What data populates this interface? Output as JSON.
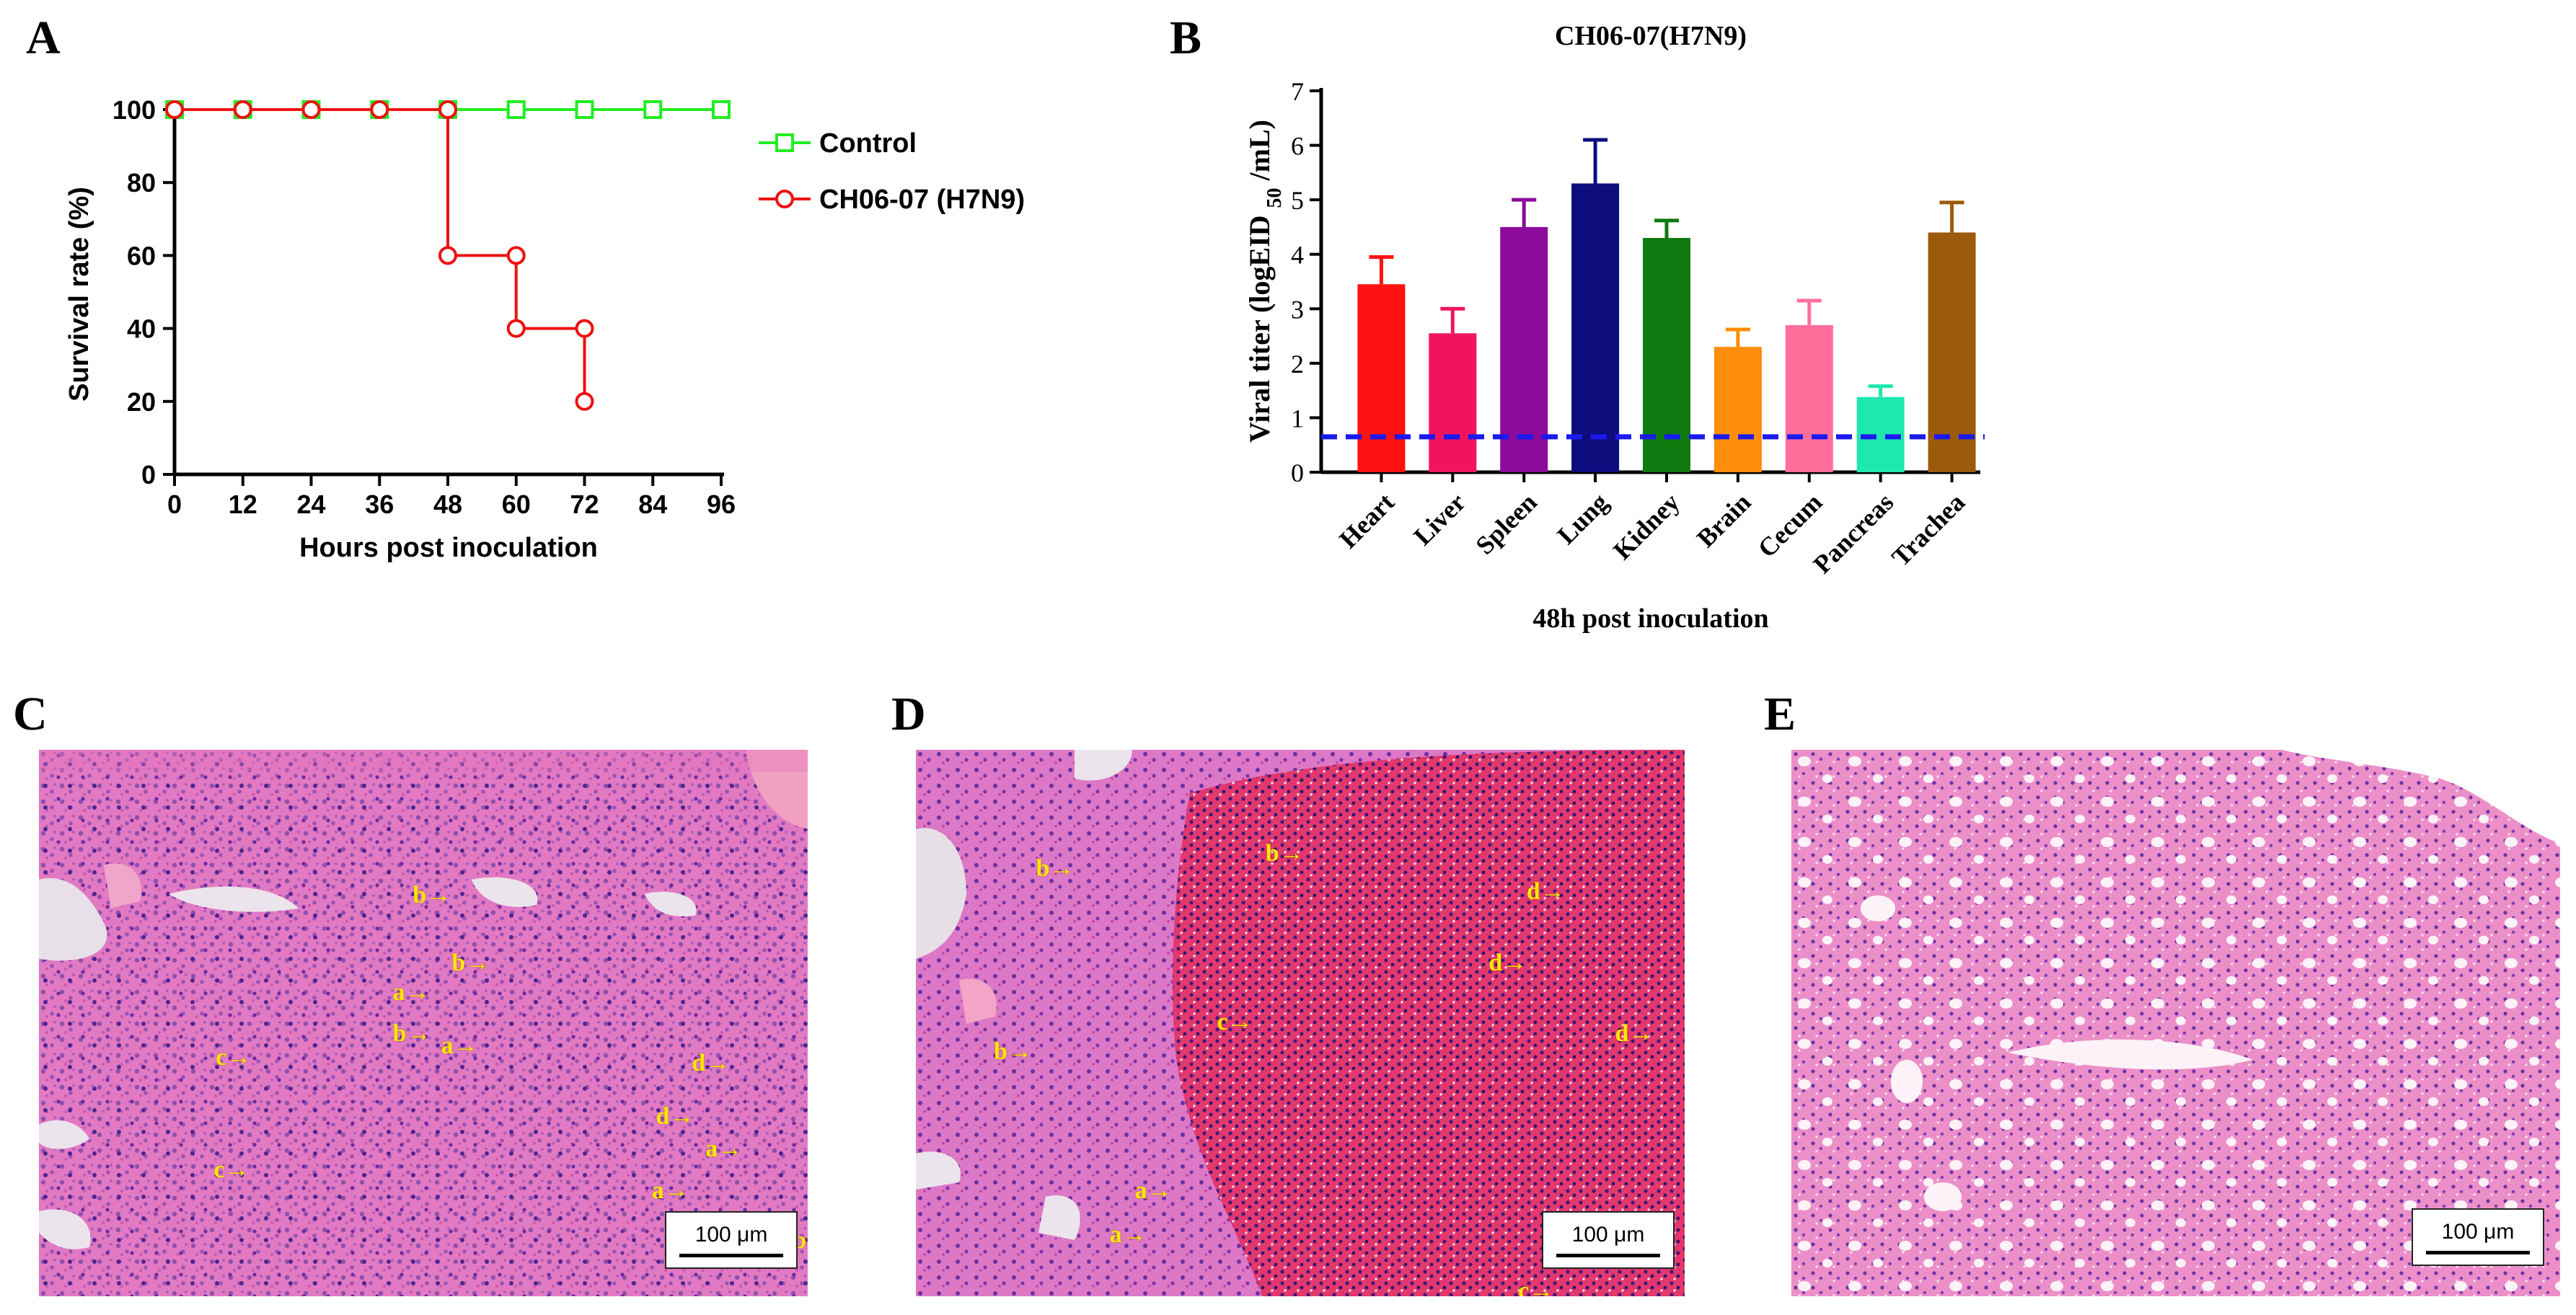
{
  "panels": {
    "a": "A",
    "b": "B",
    "c": "C",
    "d": "D",
    "e": "E"
  },
  "colors": {
    "control": "#22ee22",
    "virus": "#ee1111",
    "baseline": "#1a1aee"
  },
  "chart_data": [
    {
      "type": "line",
      "title": "",
      "xlabel": "Hours post inoculation",
      "ylabel": "Survival rate (%)",
      "xlim": [
        0,
        96
      ],
      "ylim": [
        0,
        100
      ],
      "x_ticks": [
        "0",
        "12",
        "24",
        "36",
        "48",
        "60",
        "72",
        "84",
        "96"
      ],
      "y_ticks": [
        "0",
        "20",
        "40",
        "60",
        "80",
        "100"
      ],
      "legend_position": "top-right",
      "step": true,
      "series": [
        {
          "name": "Control",
          "marker": "square",
          "color": "#22ee22",
          "x": [
            0,
            12,
            24,
            36,
            48,
            60,
            72,
            84,
            96
          ],
          "y": [
            100,
            100,
            100,
            100,
            100,
            100,
            100,
            100,
            100
          ]
        },
        {
          "name": "CH06-07 (H7N9)",
          "marker": "circle",
          "color": "#ee1111",
          "x": [
            0,
            12,
            24,
            36,
            48,
            48,
            60,
            60,
            72,
            72
          ],
          "y": [
            100,
            100,
            100,
            100,
            100,
            60,
            60,
            40,
            40,
            20
          ]
        }
      ]
    },
    {
      "type": "bar",
      "title": "CH06-07(H7N9)",
      "xlabel": "48h post inoculation",
      "ylabel": "Viral titer (logEID50 /mL)",
      "ylim": [
        0,
        7
      ],
      "y_ticks": [
        "0",
        "1",
        "2",
        "3",
        "4",
        "5",
        "6",
        "7"
      ],
      "categories": [
        "Heart",
        "Liver",
        "Spleen",
        "Lung",
        "Kidney",
        "Brain",
        "Cecum",
        "Pancreas",
        "Trachea"
      ],
      "values": [
        3.45,
        2.55,
        4.5,
        5.3,
        4.3,
        2.3,
        2.7,
        1.38,
        4.4
      ],
      "errors": [
        0.5,
        0.45,
        0.5,
        0.8,
        0.32,
        0.32,
        0.45,
        0.2,
        0.55
      ],
      "bar_colors": [
        "#ff1111",
        "#f0145e",
        "#8b0a9b",
        "#0d0d7e",
        "#0f7a0f",
        "#ff8c0a",
        "#ff6e9b",
        "#1ee8b0",
        "#9d5a0c"
      ],
      "detection_limit": 0.65
    }
  ],
  "micrographs": {
    "c": {
      "scale": "100 μm",
      "labels": [
        {
          "t": "b→"
        },
        {
          "t": "b→"
        },
        {
          "t": "a→"
        },
        {
          "t": "b→"
        },
        {
          "t": "a→"
        },
        {
          "t": "c→"
        },
        {
          "t": "c→"
        },
        {
          "t": "d→"
        },
        {
          "t": "d→"
        },
        {
          "t": "a→"
        },
        {
          "t": "a→"
        },
        {
          "t": "b→"
        },
        {
          "t": "b→"
        }
      ]
    },
    "d": {
      "scale": "100 μm",
      "labels": [
        {
          "t": "b→"
        },
        {
          "t": "b→"
        },
        {
          "t": "b→"
        },
        {
          "t": "d→"
        },
        {
          "t": "d→"
        },
        {
          "t": "c→"
        },
        {
          "t": "d→"
        },
        {
          "t": "a→"
        },
        {
          "t": "a→"
        },
        {
          "t": "c→"
        }
      ]
    },
    "e": {
      "scale": "100 μm"
    }
  }
}
